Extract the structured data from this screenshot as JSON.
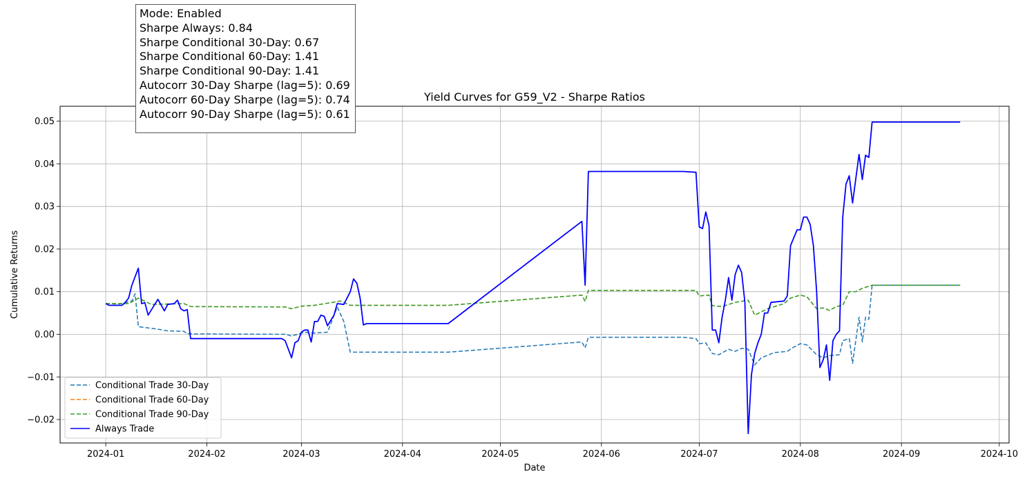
{
  "chart_data": {
    "type": "line",
    "title": "Yield Curves for G59_V2 - Sharpe Ratios",
    "xlabel": "Date",
    "ylabel": "Cumulative Returns",
    "grid": true,
    "legend_position": "lower-left",
    "xlim": [
      "2023-12-18",
      "2024-10-04"
    ],
    "ylim": [
      -0.0255,
      0.0535
    ],
    "x_ticks": [
      "2024-01",
      "2024-02",
      "2024-03",
      "2024-04",
      "2024-05",
      "2024-06",
      "2024-07",
      "2024-08",
      "2024-09",
      "2024-10"
    ],
    "y_ticks": [
      -0.02,
      -0.01,
      0.0,
      0.01,
      0.02,
      0.03,
      0.04,
      0.05
    ],
    "y_tick_labels": [
      "−0.02",
      "−0.01",
      "0.00",
      "0.01",
      "0.02",
      "0.03",
      "0.04",
      "0.05"
    ],
    "annotation": [
      "Mode: Enabled",
      "Sharpe Always: 0.84",
      "Sharpe Conditional 30-Day: 0.67",
      "Sharpe Conditional 60-Day: 1.41",
      "Sharpe Conditional 90-Day: 1.41",
      "Autocorr 30-Day Sharpe (lag=5): 0.69",
      "Autocorr 60-Day Sharpe (lag=5): 0.74",
      "Autocorr 90-Day Sharpe (lag=5): 0.61"
    ],
    "series": [
      {
        "name": "Conditional Trade 30-Day",
        "color": "#1f77b4",
        "dash": "dashed",
        "points": [
          [
            "2024-01-01",
            0.0072
          ],
          [
            "2024-01-05",
            0.0071
          ],
          [
            "2024-01-09",
            0.0078
          ],
          [
            "2024-01-10",
            0.0095
          ],
          [
            "2024-01-11",
            0.0018
          ],
          [
            "2024-01-14",
            0.0015
          ],
          [
            "2024-01-17",
            0.0012
          ],
          [
            "2024-01-20",
            0.0008
          ],
          [
            "2024-01-25",
            0.0007
          ],
          [
            "2024-01-26",
            0.0001
          ],
          [
            "2024-02-25",
            0.0
          ],
          [
            "2024-02-27",
            -0.0004
          ],
          [
            "2024-03-02",
            0.0005
          ],
          [
            "2024-03-05",
            0.0003
          ],
          [
            "2024-03-09",
            0.0005
          ],
          [
            "2024-03-12",
            0.0064
          ],
          [
            "2024-03-14",
            0.003
          ],
          [
            "2024-03-16",
            -0.0042
          ],
          [
            "2024-04-15",
            -0.0042
          ],
          [
            "2024-05-26",
            -0.0018
          ],
          [
            "2024-05-27",
            -0.0032
          ],
          [
            "2024-05-28",
            -0.0007
          ],
          [
            "2024-06-26",
            -0.0007
          ],
          [
            "2024-06-30",
            -0.001
          ],
          [
            "2024-07-01",
            -0.0022
          ],
          [
            "2024-07-03",
            -0.002
          ],
          [
            "2024-07-05",
            -0.0045
          ],
          [
            "2024-07-07",
            -0.0048
          ],
          [
            "2024-07-10",
            -0.0035
          ],
          [
            "2024-07-12",
            -0.004
          ],
          [
            "2024-07-14",
            -0.0033
          ],
          [
            "2024-07-16",
            -0.0035
          ],
          [
            "2024-07-18",
            -0.0072
          ],
          [
            "2024-07-20",
            -0.0055
          ],
          [
            "2024-07-24",
            -0.0043
          ],
          [
            "2024-07-28",
            -0.004
          ],
          [
            "2024-07-30",
            -0.003
          ],
          [
            "2024-08-01",
            -0.0022
          ],
          [
            "2024-08-03",
            -0.0025
          ],
          [
            "2024-08-06",
            -0.0048
          ],
          [
            "2024-08-08",
            -0.0055
          ],
          [
            "2024-08-10",
            -0.005
          ],
          [
            "2024-08-13",
            -0.0048
          ],
          [
            "2024-08-14",
            -0.0015
          ],
          [
            "2024-08-16",
            -0.001
          ],
          [
            "2024-08-17",
            -0.0068
          ],
          [
            "2024-08-19",
            0.004
          ],
          [
            "2024-08-20",
            -0.0018
          ],
          [
            "2024-08-21",
            0.004
          ],
          [
            "2024-08-22",
            0.0035
          ],
          [
            "2024-08-23",
            0.0115
          ],
          [
            "2024-09-19",
            0.0115
          ]
        ]
      },
      {
        "name": "Conditional Trade 60-Day",
        "color": "#ff7f0e",
        "dash": "dashed",
        "points": [
          [
            "2024-01-01",
            0.0072
          ],
          [
            "2024-01-08",
            0.0072
          ],
          [
            "2024-01-11",
            0.0085
          ],
          [
            "2024-01-15",
            0.007
          ],
          [
            "2024-01-25",
            0.0072
          ],
          [
            "2024-01-27",
            0.0065
          ],
          [
            "2024-02-25",
            0.0064
          ],
          [
            "2024-02-27",
            0.006
          ],
          [
            "2024-03-01",
            0.0066
          ],
          [
            "2024-03-05",
            0.0068
          ],
          [
            "2024-03-13",
            0.0078
          ],
          [
            "2024-03-16",
            0.0068
          ],
          [
            "2024-04-15",
            0.0068
          ],
          [
            "2024-05-26",
            0.0092
          ],
          [
            "2024-05-27",
            0.0077
          ],
          [
            "2024-05-28",
            0.0103
          ],
          [
            "2024-06-30",
            0.0103
          ],
          [
            "2024-07-01",
            0.009
          ],
          [
            "2024-07-04",
            0.0092
          ],
          [
            "2024-07-05",
            0.0067
          ],
          [
            "2024-07-08",
            0.0065
          ],
          [
            "2024-07-12",
            0.0075
          ],
          [
            "2024-07-16",
            0.008
          ],
          [
            "2024-07-18",
            0.0045
          ],
          [
            "2024-07-22",
            0.006
          ],
          [
            "2024-07-27",
            0.0072
          ],
          [
            "2024-07-29",
            0.0085
          ],
          [
            "2024-08-01",
            0.0092
          ],
          [
            "2024-08-03",
            0.0088
          ],
          [
            "2024-08-06",
            0.006
          ],
          [
            "2024-08-08",
            0.0062
          ],
          [
            "2024-08-10",
            0.0056
          ],
          [
            "2024-08-12",
            0.0065
          ],
          [
            "2024-08-14",
            0.0068
          ],
          [
            "2024-08-16",
            0.01
          ],
          [
            "2024-08-18",
            0.01
          ],
          [
            "2024-08-20",
            0.0108
          ],
          [
            "2024-08-23",
            0.0115
          ],
          [
            "2024-09-19",
            0.0115
          ]
        ]
      },
      {
        "name": "Conditional Trade 90-Day",
        "color": "#2ca02c",
        "dash": "dashed",
        "points": [
          [
            "2024-01-01",
            0.0072
          ],
          [
            "2024-01-08",
            0.0072
          ],
          [
            "2024-01-11",
            0.0085
          ],
          [
            "2024-01-15",
            0.007
          ],
          [
            "2024-01-25",
            0.0072
          ],
          [
            "2024-01-27",
            0.0065
          ],
          [
            "2024-02-25",
            0.0064
          ],
          [
            "2024-02-27",
            0.006
          ],
          [
            "2024-03-01",
            0.0066
          ],
          [
            "2024-03-05",
            0.0068
          ],
          [
            "2024-03-13",
            0.0078
          ],
          [
            "2024-03-16",
            0.0068
          ],
          [
            "2024-04-15",
            0.0068
          ],
          [
            "2024-05-26",
            0.0092
          ],
          [
            "2024-05-27",
            0.0077
          ],
          [
            "2024-05-28",
            0.0103
          ],
          [
            "2024-06-30",
            0.0103
          ],
          [
            "2024-07-01",
            0.009
          ],
          [
            "2024-07-04",
            0.0092
          ],
          [
            "2024-07-05",
            0.0067
          ],
          [
            "2024-07-08",
            0.0065
          ],
          [
            "2024-07-12",
            0.0075
          ],
          [
            "2024-07-16",
            0.008
          ],
          [
            "2024-07-18",
            0.0045
          ],
          [
            "2024-07-22",
            0.006
          ],
          [
            "2024-07-27",
            0.0072
          ],
          [
            "2024-07-29",
            0.0085
          ],
          [
            "2024-08-01",
            0.0092
          ],
          [
            "2024-08-03",
            0.0088
          ],
          [
            "2024-08-06",
            0.006
          ],
          [
            "2024-08-08",
            0.0062
          ],
          [
            "2024-08-10",
            0.0056
          ],
          [
            "2024-08-12",
            0.0065
          ],
          [
            "2024-08-14",
            0.0068
          ],
          [
            "2024-08-16",
            0.01
          ],
          [
            "2024-08-18",
            0.01
          ],
          [
            "2024-08-20",
            0.0108
          ],
          [
            "2024-08-23",
            0.0115
          ],
          [
            "2024-09-19",
            0.0115
          ]
        ]
      },
      {
        "name": "Always Trade",
        "color": "#0000ff",
        "dash": "solid",
        "points": [
          [
            "2024-01-01",
            0.0072
          ],
          [
            "2024-01-02",
            0.0068
          ],
          [
            "2024-01-06",
            0.0068
          ],
          [
            "2024-01-07",
            0.0075
          ],
          [
            "2024-01-08",
            0.0085
          ],
          [
            "2024-01-09",
            0.0115
          ],
          [
            "2024-01-11",
            0.0155
          ],
          [
            "2024-01-12",
            0.0072
          ],
          [
            "2024-01-13",
            0.0074
          ],
          [
            "2024-01-14",
            0.0045
          ],
          [
            "2024-01-17",
            0.0082
          ],
          [
            "2024-01-19",
            0.0055
          ],
          [
            "2024-01-20",
            0.007
          ],
          [
            "2024-01-22",
            0.0072
          ],
          [
            "2024-01-23",
            0.008
          ],
          [
            "2024-01-24",
            0.006
          ],
          [
            "2024-01-25",
            0.0055
          ],
          [
            "2024-01-26",
            0.0058
          ],
          [
            "2024-01-27",
            -0.001
          ],
          [
            "2024-02-24",
            -0.001
          ],
          [
            "2024-02-25",
            -0.0015
          ],
          [
            "2024-02-27",
            -0.0055
          ],
          [
            "2024-02-28",
            -0.002
          ],
          [
            "2024-02-29",
            -0.0015
          ],
          [
            "2024-03-01",
            0.0005
          ],
          [
            "2024-03-02",
            0.001
          ],
          [
            "2024-03-03",
            0.001
          ],
          [
            "2024-03-04",
            -0.0018
          ],
          [
            "2024-03-05",
            0.003
          ],
          [
            "2024-03-06",
            0.003
          ],
          [
            "2024-03-07",
            0.0045
          ],
          [
            "2024-03-08",
            0.0042
          ],
          [
            "2024-03-09",
            0.002
          ],
          [
            "2024-03-11",
            0.0045
          ],
          [
            "2024-03-12",
            0.0072
          ],
          [
            "2024-03-14",
            0.007
          ],
          [
            "2024-03-16",
            0.01
          ],
          [
            "2024-03-17",
            0.013
          ],
          [
            "2024-03-18",
            0.012
          ],
          [
            "2024-03-19",
            0.0085
          ],
          [
            "2024-03-20",
            0.0022
          ],
          [
            "2024-03-21",
            0.0025
          ],
          [
            "2024-04-15",
            0.0025
          ],
          [
            "2024-05-26",
            0.0265
          ],
          [
            "2024-05-27",
            0.0115
          ],
          [
            "2024-05-28",
            0.0382
          ],
          [
            "2024-06-26",
            0.0382
          ],
          [
            "2024-06-30",
            0.038
          ],
          [
            "2024-07-01",
            0.0252
          ],
          [
            "2024-07-02",
            0.0248
          ],
          [
            "2024-07-03",
            0.0287
          ],
          [
            "2024-07-04",
            0.0255
          ],
          [
            "2024-07-05",
            0.001
          ],
          [
            "2024-07-06",
            0.001
          ],
          [
            "2024-07-07",
            -0.002
          ],
          [
            "2024-07-08",
            0.004
          ],
          [
            "2024-07-09",
            0.008
          ],
          [
            "2024-07-10",
            0.0133
          ],
          [
            "2024-07-11",
            0.008
          ],
          [
            "2024-07-12",
            0.014
          ],
          [
            "2024-07-13",
            0.0162
          ],
          [
            "2024-07-14",
            0.0145
          ],
          [
            "2024-07-15",
            0.0075
          ],
          [
            "2024-07-16",
            -0.0233
          ],
          [
            "2024-07-17",
            -0.0095
          ],
          [
            "2024-07-18",
            -0.0045
          ],
          [
            "2024-07-19",
            -0.002
          ],
          [
            "2024-07-20",
            0.0
          ],
          [
            "2024-07-21",
            0.005
          ],
          [
            "2024-07-22",
            0.005
          ],
          [
            "2024-07-23",
            0.0075
          ],
          [
            "2024-07-27",
            0.0078
          ],
          [
            "2024-07-28",
            0.009
          ],
          [
            "2024-07-29",
            0.0208
          ],
          [
            "2024-07-31",
            0.0245
          ],
          [
            "2024-08-01",
            0.0245
          ],
          [
            "2024-08-02",
            0.0275
          ],
          [
            "2024-08-03",
            0.0275
          ],
          [
            "2024-08-04",
            0.0258
          ],
          [
            "2024-08-05",
            0.0208
          ],
          [
            "2024-08-06",
            0.01
          ],
          [
            "2024-08-07",
            -0.0078
          ],
          [
            "2024-08-08",
            -0.006
          ],
          [
            "2024-08-09",
            -0.0025
          ],
          [
            "2024-08-10",
            -0.0108
          ],
          [
            "2024-08-11",
            -0.0015
          ],
          [
            "2024-08-12",
            0.0
          ],
          [
            "2024-08-13",
            0.0008
          ],
          [
            "2024-08-14",
            0.0275
          ],
          [
            "2024-08-15",
            0.0352
          ],
          [
            "2024-08-16",
            0.0372
          ],
          [
            "2024-08-17",
            0.0308
          ],
          [
            "2024-08-18",
            0.0365
          ],
          [
            "2024-08-19",
            0.0422
          ],
          [
            "2024-08-20",
            0.0363
          ],
          [
            "2024-08-21",
            0.042
          ],
          [
            "2024-08-22",
            0.0415
          ],
          [
            "2024-08-23",
            0.0498
          ],
          [
            "2024-09-19",
            0.0498
          ]
        ]
      }
    ]
  }
}
